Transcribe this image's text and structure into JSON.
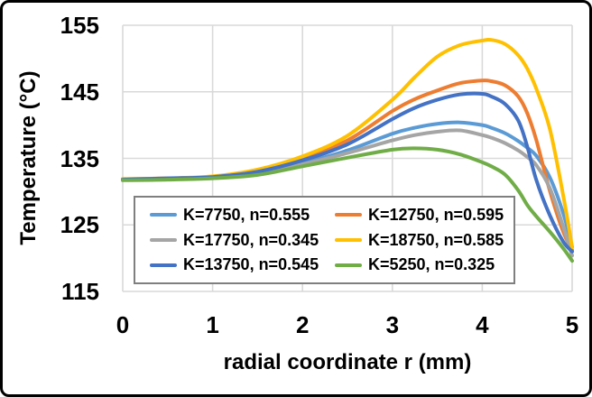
{
  "chart_data": {
    "type": "line",
    "title": "",
    "xlabel": "radial coordinate r (mm)",
    "ylabel": "Temperature (°C)",
    "xlim": [
      0,
      5
    ],
    "ylim": [
      115,
      155
    ],
    "x_ticks": [
      0,
      1,
      2,
      3,
      4,
      5
    ],
    "y_ticks": [
      115,
      125,
      135,
      145,
      155
    ],
    "grid": true,
    "legend": {
      "position": "inside-bottom-left",
      "columns": 2
    },
    "x": [
      0,
      0.5,
      1,
      1.5,
      2,
      2.5,
      3,
      3.25,
      3.5,
      3.75,
      4,
      4.1,
      4.25,
      4.4,
      4.5,
      4.6,
      4.75,
      4.9,
      5
    ],
    "series": [
      {
        "name": "K=7750, n=0.555",
        "color": "#5B9BD5",
        "values": [
          131.8,
          131.9,
          132.1,
          132.8,
          134.3,
          136.2,
          138.7,
          139.6,
          140.2,
          140.4,
          140.0,
          139.6,
          138.8,
          137.6,
          136.6,
          135.4,
          132.2,
          126.8,
          121.7
        ]
      },
      {
        "name": "K=12750, n=0.595",
        "color": "#ED7D31",
        "values": [
          131.9,
          132.0,
          132.2,
          133.1,
          135.0,
          137.7,
          142.1,
          143.9,
          145.2,
          146.3,
          146.7,
          146.6,
          146.0,
          144.3,
          141.8,
          137.8,
          130.2,
          124.0,
          121.2
        ]
      },
      {
        "name": "K=17750, n=0.345",
        "color": "#A5A5A5",
        "values": [
          131.8,
          131.9,
          132.0,
          132.7,
          134.1,
          135.8,
          137.7,
          138.5,
          139.0,
          139.2,
          138.5,
          138.1,
          137.3,
          136.2,
          135.2,
          134.0,
          130.6,
          124.8,
          120.4
        ]
      },
      {
        "name": "K=18750, n=0.585",
        "color": "#FFC000",
        "values": [
          131.9,
          132.0,
          132.3,
          133.3,
          135.3,
          138.4,
          143.8,
          147.2,
          150.3,
          152.0,
          152.7,
          152.8,
          152.2,
          150.5,
          148.5,
          145.5,
          139.5,
          129.5,
          121.6
        ]
      },
      {
        "name": "K=13750, n=0.545",
        "color": "#4472C4",
        "values": [
          131.8,
          132.0,
          132.2,
          133.0,
          134.7,
          137.1,
          140.9,
          142.6,
          143.8,
          144.6,
          144.7,
          144.3,
          143.2,
          140.7,
          136.8,
          131.8,
          126.5,
          122.5,
          121.0
        ]
      },
      {
        "name": "K=5250, n=0.325",
        "color": "#70AD47",
        "values": [
          131.7,
          131.8,
          132.0,
          132.5,
          133.8,
          135.1,
          136.3,
          136.5,
          136.3,
          135.6,
          134.4,
          133.8,
          132.6,
          130.2,
          128.0,
          126.3,
          124.0,
          121.5,
          119.6
        ]
      }
    ]
  },
  "style": {
    "grid_color": "#D9D9D9",
    "legend_border_color": "#7F7F7F",
    "frame_color": "#000000",
    "text_color": "#000000",
    "line_width": 4
  }
}
